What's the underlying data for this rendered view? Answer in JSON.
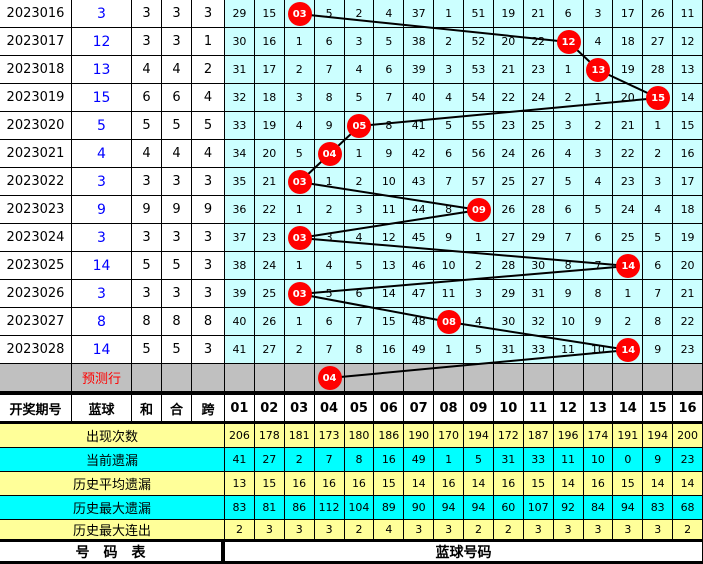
{
  "rows": [
    {
      "period": "2023016",
      "blue": "3",
      "he": "3",
      "hewei": "3",
      "kua": "3",
      "cells": [
        "29",
        "15",
        "03",
        "5",
        "2",
        "4",
        "37",
        "1",
        "51",
        "19",
        "21",
        "6",
        "3",
        "17",
        "26",
        "11"
      ],
      "hit": 3
    },
    {
      "period": "2023017",
      "blue": "12",
      "he": "3",
      "hewei": "3",
      "kua": "1",
      "cells": [
        "30",
        "16",
        "1",
        "6",
        "3",
        "5",
        "38",
        "2",
        "52",
        "20",
        "22",
        "12",
        "4",
        "18",
        "27",
        "12"
      ],
      "hit": 12
    },
    {
      "period": "2023018",
      "blue": "13",
      "he": "4",
      "hewei": "4",
      "kua": "2",
      "cells": [
        "31",
        "17",
        "2",
        "7",
        "4",
        "6",
        "39",
        "3",
        "53",
        "21",
        "23",
        "1",
        "13",
        "19",
        "28",
        "13"
      ],
      "hit": 13
    },
    {
      "period": "2023019",
      "blue": "15",
      "he": "6",
      "hewei": "6",
      "kua": "4",
      "cells": [
        "32",
        "18",
        "3",
        "8",
        "5",
        "7",
        "40",
        "4",
        "54",
        "22",
        "24",
        "2",
        "1",
        "20",
        "15",
        "14"
      ],
      "hit": 15
    },
    {
      "period": "2023020",
      "blue": "5",
      "he": "5",
      "hewei": "5",
      "kua": "5",
      "cells": [
        "33",
        "19",
        "4",
        "9",
        "05",
        "8",
        "41",
        "5",
        "55",
        "23",
        "25",
        "3",
        "2",
        "21",
        "1",
        "15"
      ],
      "hit": 5
    },
    {
      "period": "2023021",
      "blue": "4",
      "he": "4",
      "hewei": "4",
      "kua": "4",
      "cells": [
        "34",
        "20",
        "5",
        "04",
        "1",
        "9",
        "42",
        "6",
        "56",
        "24",
        "26",
        "4",
        "3",
        "22",
        "2",
        "16"
      ],
      "hit": 4
    },
    {
      "period": "2023022",
      "blue": "3",
      "he": "3",
      "hewei": "3",
      "kua": "3",
      "cells": [
        "35",
        "21",
        "03",
        "1",
        "2",
        "10",
        "43",
        "7",
        "57",
        "25",
        "27",
        "5",
        "4",
        "23",
        "3",
        "17"
      ],
      "hit": 3
    },
    {
      "period": "2023023",
      "blue": "9",
      "he": "9",
      "hewei": "9",
      "kua": "9",
      "cells": [
        "36",
        "22",
        "1",
        "2",
        "3",
        "11",
        "44",
        "8",
        "09",
        "26",
        "28",
        "6",
        "5",
        "24",
        "4",
        "18"
      ],
      "hit": 9
    },
    {
      "period": "2023024",
      "blue": "3",
      "he": "3",
      "hewei": "3",
      "kua": "3",
      "cells": [
        "37",
        "23",
        "03",
        "3",
        "4",
        "12",
        "45",
        "9",
        "1",
        "27",
        "29",
        "7",
        "6",
        "25",
        "5",
        "19"
      ],
      "hit": 3
    },
    {
      "period": "2023025",
      "blue": "14",
      "he": "5",
      "hewei": "5",
      "kua": "3",
      "cells": [
        "38",
        "24",
        "1",
        "4",
        "5",
        "13",
        "46",
        "10",
        "2",
        "28",
        "30",
        "8",
        "7",
        "14",
        "6",
        "20"
      ],
      "hit": 14
    },
    {
      "period": "2023026",
      "blue": "3",
      "he": "3",
      "hewei": "3",
      "kua": "3",
      "cells": [
        "39",
        "25",
        "03",
        "5",
        "6",
        "14",
        "47",
        "11",
        "3",
        "29",
        "31",
        "9",
        "8",
        "1",
        "7",
        "21"
      ],
      "hit": 3
    },
    {
      "period": "2023027",
      "blue": "8",
      "he": "8",
      "hewei": "8",
      "kua": "8",
      "cells": [
        "40",
        "26",
        "1",
        "6",
        "7",
        "15",
        "48",
        "08",
        "4",
        "30",
        "32",
        "10",
        "9",
        "2",
        "8",
        "22"
      ],
      "hit": 8
    },
    {
      "period": "2023028",
      "blue": "14",
      "he": "5",
      "hewei": "5",
      "kua": "3",
      "cells": [
        "41",
        "27",
        "2",
        "7",
        "8",
        "16",
        "49",
        "1",
        "5",
        "31",
        "33",
        "11",
        "10",
        "14",
        "9",
        "23"
      ],
      "hit": 14
    }
  ],
  "prediction": {
    "label": "预测行",
    "ball": "04",
    "hit": 4
  },
  "header": {
    "period": "开奖期号",
    "blue": "蓝球",
    "he": "和",
    "hewei": "合",
    "kua": "跨",
    "numbers": [
      "01",
      "02",
      "03",
      "04",
      "05",
      "06",
      "07",
      "08",
      "09",
      "10",
      "11",
      "12",
      "13",
      "14",
      "15",
      "16"
    ]
  },
  "stats": [
    {
      "label": "出现次数",
      "values": [
        "206",
        "178",
        "181",
        "173",
        "180",
        "186",
        "190",
        "170",
        "194",
        "172",
        "187",
        "196",
        "174",
        "191",
        "194",
        "200"
      ]
    },
    {
      "label": "当前遗漏",
      "values": [
        "41",
        "27",
        "2",
        "7",
        "8",
        "16",
        "49",
        "1",
        "5",
        "31",
        "33",
        "11",
        "10",
        "0",
        "9",
        "23"
      ]
    },
    {
      "label": "历史平均遗漏",
      "values": [
        "13",
        "15",
        "16",
        "16",
        "16",
        "15",
        "14",
        "16",
        "14",
        "16",
        "15",
        "14",
        "16",
        "15",
        "14",
        "14"
      ]
    },
    {
      "label": "历史最大遗漏",
      "values": [
        "83",
        "81",
        "86",
        "112",
        "104",
        "89",
        "90",
        "94",
        "94",
        "60",
        "107",
        "92",
        "84",
        "94",
        "83",
        "68"
      ]
    },
    {
      "label": "历史最大连出",
      "values": [
        "2",
        "3",
        "3",
        "3",
        "2",
        "4",
        "3",
        "3",
        "2",
        "2",
        "3",
        "3",
        "3",
        "3",
        "3",
        "2"
      ]
    }
  ],
  "footer": {
    "left": "号　码　表",
    "right": "蓝球号码"
  },
  "colors": {
    "ball": "#ff0000",
    "grid": "#ccffff",
    "stat_yellow": "#ffff99",
    "stat_cyan": "#00ffff",
    "prediction_row": "#c0c0c0",
    "blue_text": "#0000ff"
  }
}
